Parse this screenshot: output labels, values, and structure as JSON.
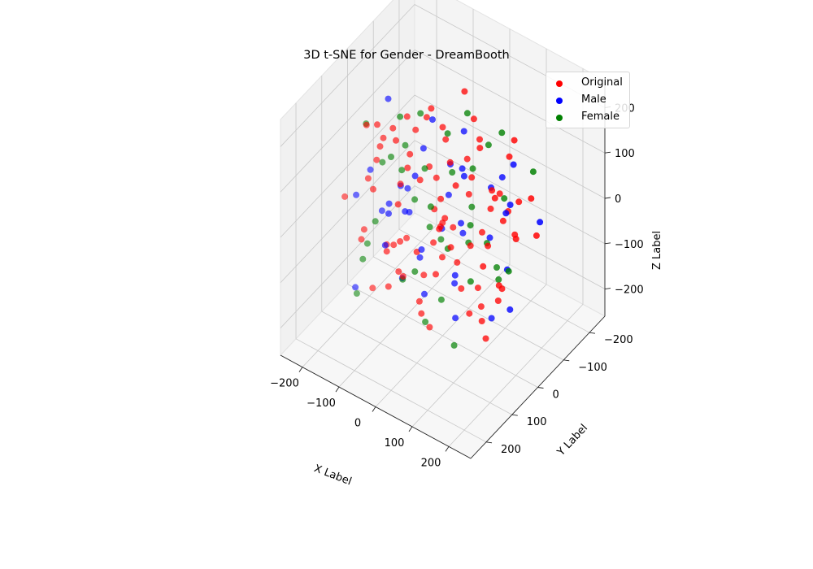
{
  "chart_data": {
    "type": "scatter",
    "subtype": "3d",
    "title": "3D t-SNE for Gender - DreamBooth",
    "xlabel": "X Label",
    "ylabel": "Y Label",
    "zlabel": "Z Label",
    "xlim": [
      -260,
      260
    ],
    "ylim": [
      -260,
      260
    ],
    "zlim": [
      -260,
      260
    ],
    "ticks": {
      "x": [
        -200,
        -100,
        0,
        100,
        200
      ],
      "y": [
        -200,
        -100,
        0,
        100,
        200
      ],
      "z": [
        -200,
        -100,
        0,
        100,
        200
      ]
    },
    "tick_labels": {
      "x": [
        "−200",
        "−100",
        "0",
        "100",
        "200"
      ],
      "y": [
        "−200",
        "−100",
        "0",
        "100",
        "200"
      ],
      "z": [
        "−200",
        "−100",
        "0",
        "100",
        "200"
      ]
    },
    "grid": true,
    "legend_position": "top-right",
    "series": [
      {
        "name": "Original",
        "color": "#ff0000",
        "points": [
          [
            -180,
            40,
            150
          ],
          [
            -150,
            -20,
            120
          ],
          [
            -120,
            60,
            160
          ],
          [
            -100,
            -80,
            130
          ],
          [
            -60,
            20,
            180
          ],
          [
            -20,
            -40,
            140
          ],
          [
            20,
            80,
            170
          ],
          [
            60,
            -10,
            150
          ],
          [
            100,
            40,
            120
          ],
          [
            140,
            -60,
            160
          ],
          [
            170,
            20,
            140
          ],
          [
            -170,
            -60,
            60
          ],
          [
            -140,
            90,
            80
          ],
          [
            -110,
            -20,
            50
          ],
          [
            -80,
            50,
            70
          ],
          [
            -50,
            -100,
            40
          ],
          [
            -10,
            10,
            90
          ],
          [
            30,
            -70,
            60
          ],
          [
            70,
            100,
            80
          ],
          [
            110,
            -30,
            50
          ],
          [
            150,
            60,
            70
          ],
          [
            190,
            -10,
            40
          ],
          [
            -190,
            0,
            -20
          ],
          [
            -160,
            -100,
            10
          ],
          [
            -130,
            120,
            -10
          ],
          [
            -90,
            -40,
            20
          ],
          [
            -60,
            80,
            -30
          ],
          [
            -30,
            -10,
            0
          ],
          [
            10,
            50,
            -20
          ],
          [
            50,
            -120,
            10
          ],
          [
            90,
            20,
            -10
          ],
          [
            130,
            -50,
            20
          ],
          [
            160,
            90,
            -30
          ],
          [
            200,
            -80,
            0
          ],
          [
            -180,
            60,
            -90
          ],
          [
            -150,
            -40,
            -60
          ],
          [
            -120,
            20,
            -100
          ],
          [
            -90,
            -120,
            -70
          ],
          [
            -50,
            100,
            -80
          ],
          [
            -20,
            -60,
            -110
          ],
          [
            20,
            30,
            -60
          ],
          [
            60,
            -90,
            -90
          ],
          [
            100,
            70,
            -70
          ],
          [
            140,
            -20,
            -100
          ],
          [
            180,
            40,
            -80
          ],
          [
            -160,
            -10,
            -150
          ],
          [
            -120,
            -70,
            -170
          ],
          [
            -80,
            40,
            -140
          ],
          [
            -40,
            -30,
            -160
          ],
          [
            0,
            90,
            -130
          ],
          [
            40,
            -100,
            -150
          ],
          [
            80,
            10,
            -170
          ],
          [
            120,
            -60,
            -140
          ],
          [
            160,
            60,
            -160
          ],
          [
            -100,
            130,
            -120
          ],
          [
            -70,
            -150,
            -50
          ],
          [
            0,
            140,
            40
          ],
          [
            30,
            -160,
            -40
          ],
          [
            120,
            130,
            110
          ],
          [
            -130,
            -140,
            100
          ],
          [
            70,
            150,
            -120
          ],
          [
            -40,
            160,
            20
          ],
          [
            150,
            -130,
            30
          ],
          [
            -190,
            110,
            30
          ],
          [
            190,
            120,
            -40
          ],
          [
            -60,
            -170,
            150
          ],
          [
            90,
            -150,
            120
          ],
          [
            0,
            0,
            200
          ],
          [
            -30,
            40,
            -200
          ],
          [
            50,
            -50,
            210
          ],
          [
            110,
            100,
            10
          ],
          [
            -110,
            100,
            140
          ],
          [
            40,
            130,
            -30
          ],
          [
            -150,
            30,
            110
          ],
          [
            130,
            -100,
            -50
          ],
          [
            10,
            -130,
            80
          ],
          [
            -80,
            -100,
            -120
          ],
          [
            180,
            -40,
            90
          ],
          [
            -200,
            -30,
            100
          ],
          [
            200,
            30,
            120
          ],
          [
            20,
            20,
            20
          ],
          [
            -20,
            -20,
            -40
          ],
          [
            80,
            -30,
            190
          ],
          [
            -90,
            10,
            190
          ],
          [
            100,
            -10,
            -190
          ],
          [
            -120,
            40,
            -180
          ]
        ]
      },
      {
        "name": "Male",
        "color": "#0000ff",
        "points": [
          [
            -170,
            -30,
            170
          ],
          [
            -120,
            110,
            120
          ],
          [
            -70,
            -60,
            150
          ],
          [
            -30,
            120,
            130
          ],
          [
            30,
            -40,
            180
          ],
          [
            80,
            90,
            140
          ],
          [
            130,
            -90,
            120
          ],
          [
            170,
            10,
            170
          ],
          [
            -180,
            80,
            20
          ],
          [
            -130,
            -110,
            30
          ],
          [
            -70,
            30,
            0
          ],
          [
            -10,
            -90,
            50
          ],
          [
            40,
            60,
            30
          ],
          [
            100,
            -120,
            0
          ],
          [
            150,
            30,
            40
          ],
          [
            -150,
            10,
            -120
          ],
          [
            -100,
            -60,
            -150
          ],
          [
            -40,
            100,
            -90
          ],
          [
            20,
            -20,
            -130
          ],
          [
            70,
            50,
            -160
          ],
          [
            120,
            -80,
            -110
          ],
          [
            170,
            -20,
            -140
          ],
          [
            -60,
            150,
            80
          ],
          [
            60,
            -160,
            -60
          ],
          [
            0,
            -30,
            100
          ],
          [
            -110,
            -10,
            -40
          ],
          [
            110,
            110,
            -30
          ],
          [
            -20,
            60,
            -60
          ],
          [
            140,
            120,
            100
          ],
          [
            -160,
            -120,
            -50
          ],
          [
            50,
            0,
            10
          ],
          [
            -40,
            -140,
            -10
          ],
          [
            90,
            -60,
            70
          ],
          [
            -90,
            80,
            40
          ],
          [
            190,
            80,
            -90
          ],
          [
            -190,
            -60,
            -110
          ],
          [
            10,
            150,
            160
          ],
          [
            -50,
            0,
            -190
          ],
          [
            160,
            -150,
            -30
          ],
          [
            -140,
            140,
            -130
          ]
        ]
      },
      {
        "name": "Female",
        "color": "#008000",
        "points": [
          [
            -160,
            70,
            180
          ],
          [
            -110,
            -70,
            140
          ],
          [
            -60,
            60,
            170
          ],
          [
            -10,
            -110,
            160
          ],
          [
            40,
            20,
            130
          ],
          [
            90,
            -50,
            170
          ],
          [
            150,
            100,
            150
          ],
          [
            -180,
            -90,
            90
          ],
          [
            -120,
            30,
            100
          ],
          [
            -70,
            -30,
            60
          ],
          [
            -20,
            80,
            80
          ],
          [
            40,
            -60,
            90
          ],
          [
            80,
            120,
            60
          ],
          [
            140,
            -40,
            80
          ],
          [
            190,
            60,
            10
          ],
          [
            -170,
            20,
            -70
          ],
          [
            -110,
            -110,
            -90
          ],
          [
            -60,
            70,
            -120
          ],
          [
            0,
            -20,
            -80
          ],
          [
            60,
            90,
            -100
          ],
          [
            110,
            -100,
            -130
          ],
          [
            160,
            10,
            -60
          ],
          [
            -150,
            120,
            -160
          ],
          [
            -90,
            -20,
            -170
          ],
          [
            -30,
            -150,
            -120
          ],
          [
            30,
            110,
            -150
          ],
          [
            100,
            -30,
            -30
          ],
          [
            -140,
            -40,
            20
          ],
          [
            120,
            70,
            40
          ],
          [
            0,
            50,
            10
          ],
          [
            -50,
            -90,
            110
          ],
          [
            70,
            -130,
            140
          ],
          [
            -100,
            150,
            -10
          ],
          [
            130,
            140,
            -140
          ],
          [
            -190,
            40,
            -150
          ],
          [
            20,
            -80,
            -180
          ],
          [
            170,
            -110,
            110
          ],
          [
            -80,
            120,
            160
          ]
        ]
      }
    ]
  }
}
